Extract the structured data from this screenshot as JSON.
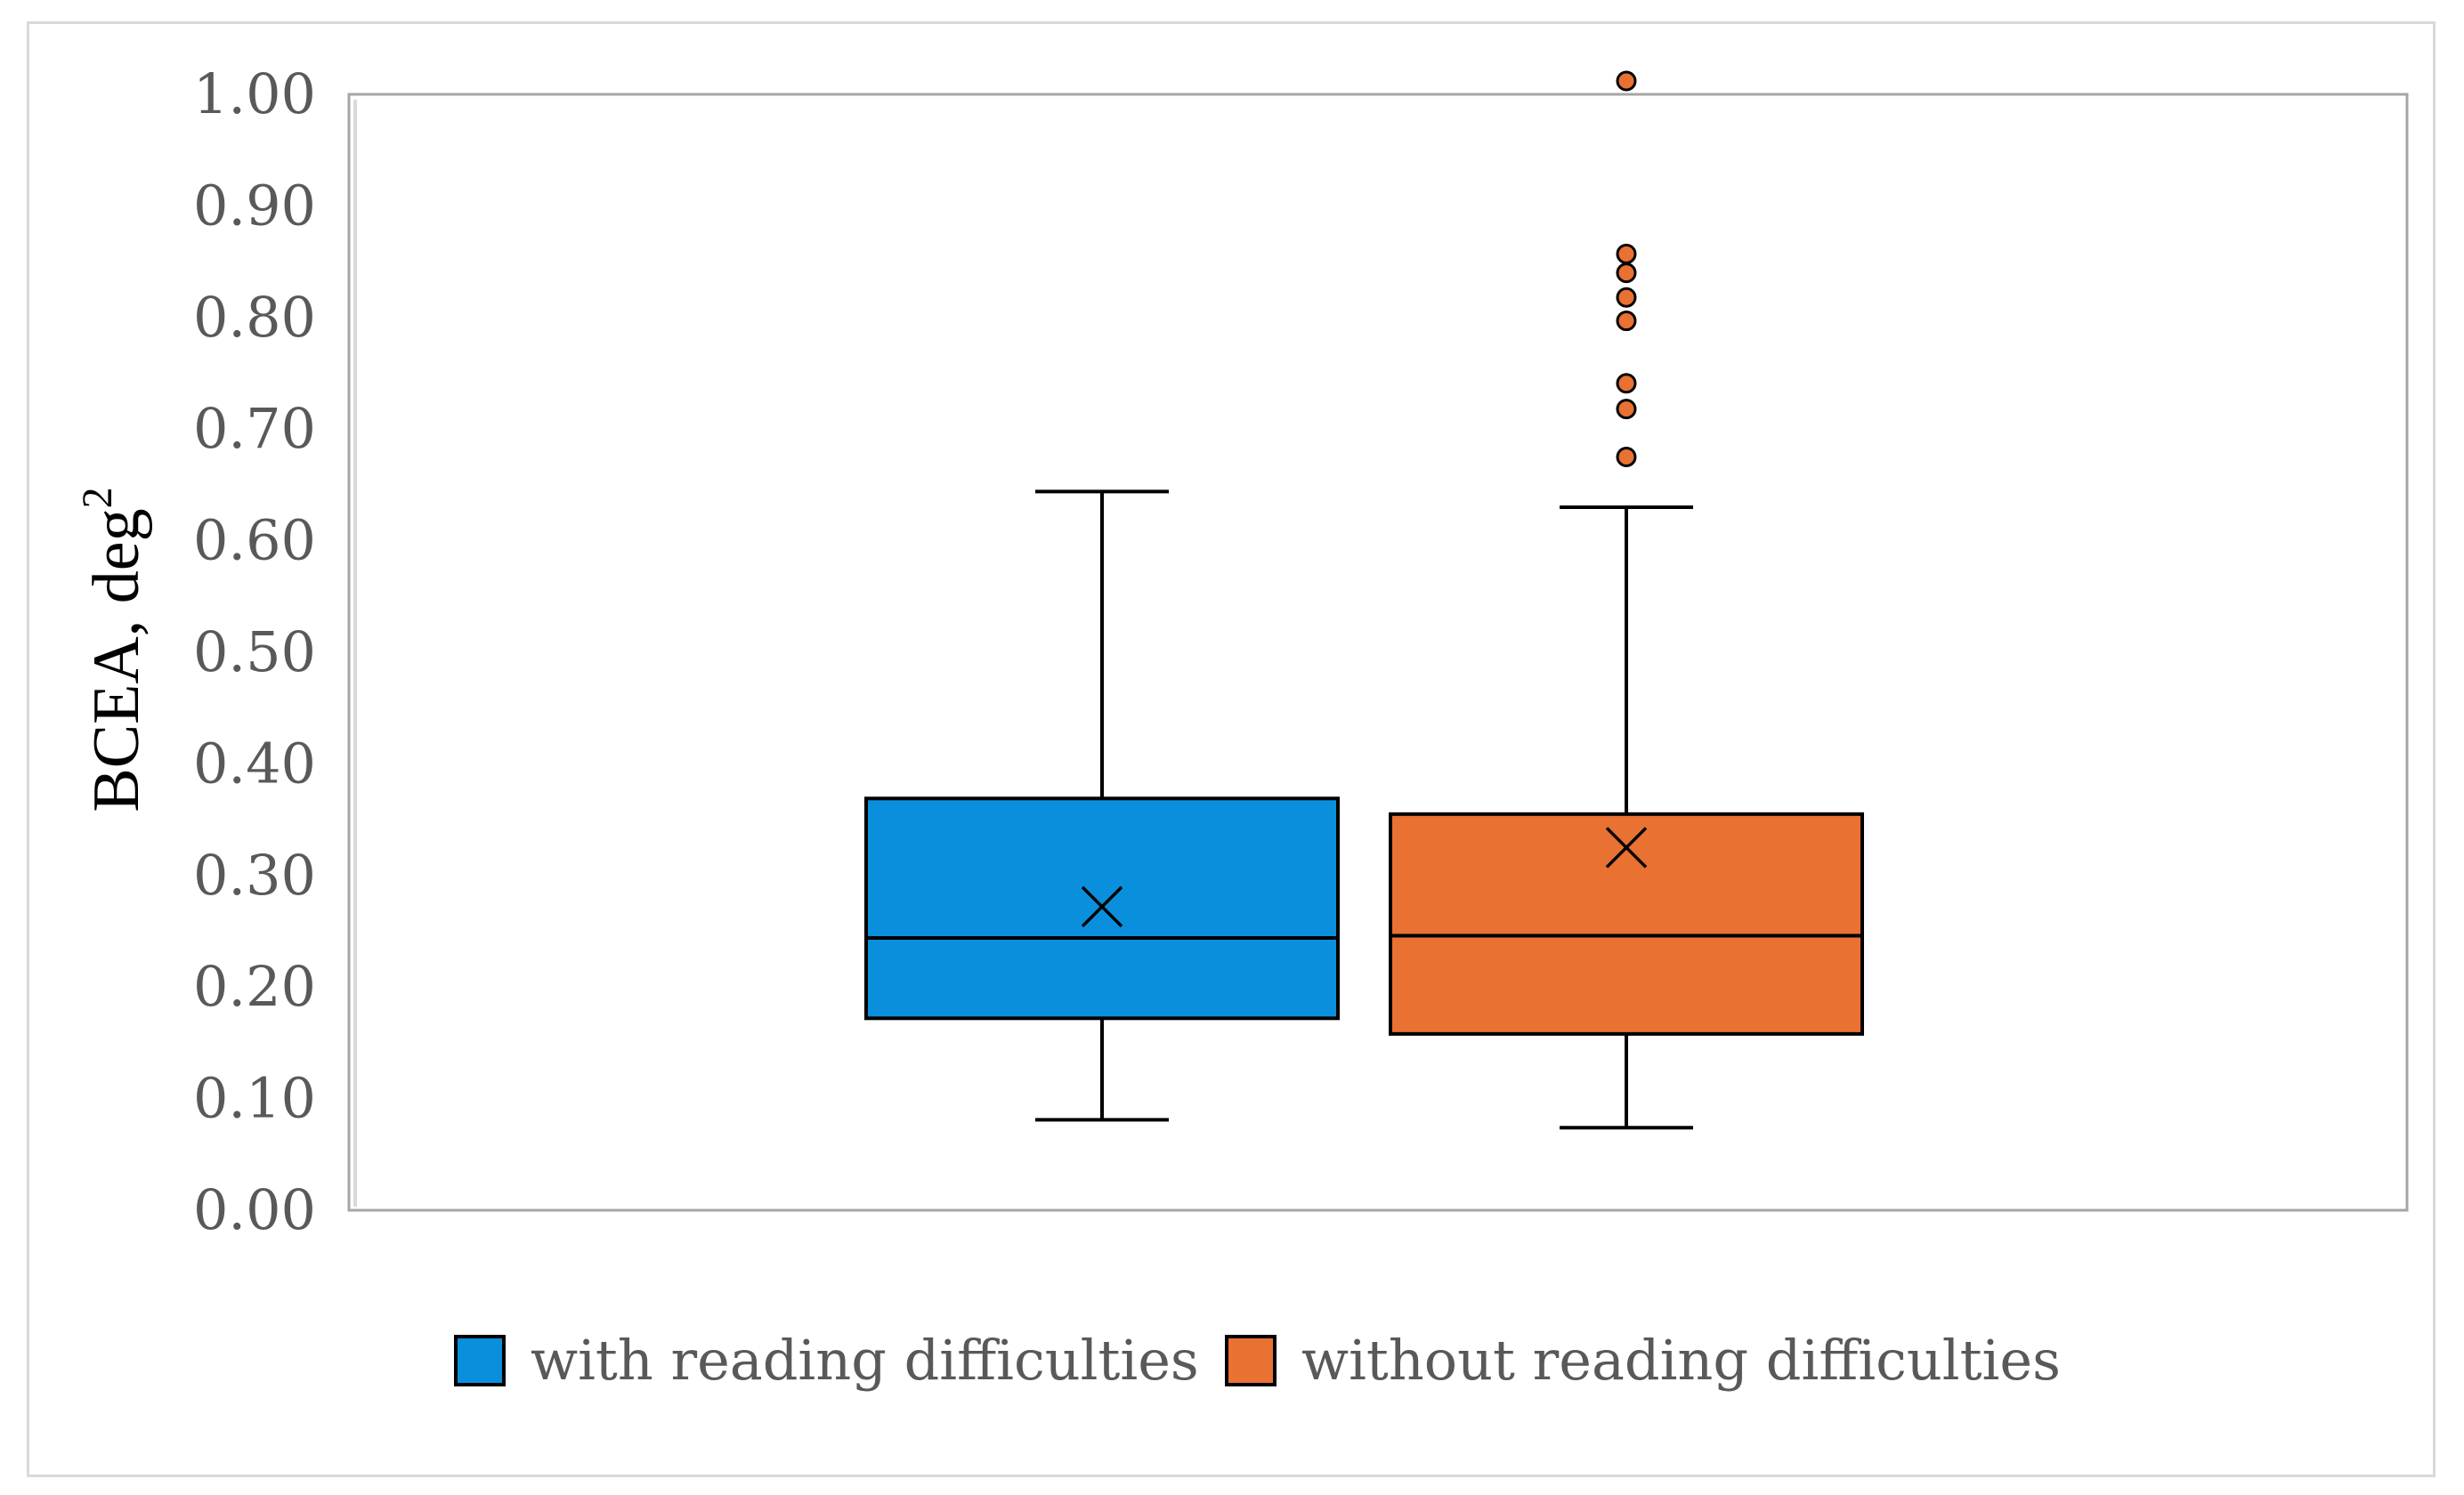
{
  "chart_data": {
    "type": "box",
    "ylabel": "BCEA, deg",
    "ylabel_sup": "2",
    "ylim": [
      0,
      1
    ],
    "yticks": [
      "0.00",
      "0.10",
      "0.20",
      "0.30",
      "0.40",
      "0.50",
      "0.60",
      "0.70",
      "0.80",
      "0.90",
      "1.00"
    ],
    "grid": false,
    "legend_position": "bottom",
    "series": [
      {
        "name": "with reading difficulties",
        "color": "#0a8fdc",
        "min": 0.081,
        "q1": 0.172,
        "median": 0.244,
        "q3": 0.369,
        "max": 0.644,
        "mean": 0.272,
        "outliers": []
      },
      {
        "name": "without reading difficulties",
        "color": "#e97132",
        "min": 0.074,
        "q1": 0.158,
        "median": 0.246,
        "q3": 0.355,
        "max": 0.63,
        "mean": 0.325,
        "outliers": [
          0.675,
          0.718,
          0.741,
          0.797,
          0.818,
          0.84,
          0.857,
          1.012
        ]
      }
    ]
  }
}
